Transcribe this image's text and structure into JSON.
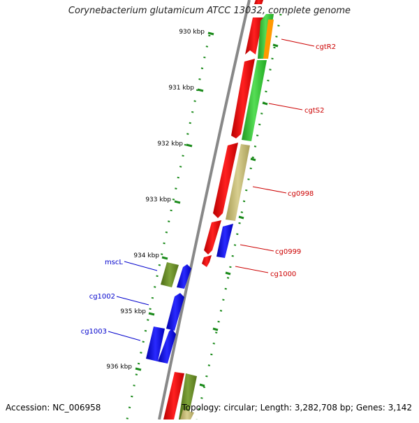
{
  "title": "Corynebacterium glutamicum ATCC 13032, complete genome",
  "footer": {
    "accession": "Accession: NC_006958",
    "topology": "Topology: circular; Length: 3,282,708 bp; Genes: 3,142"
  },
  "colors": {
    "backbone": "#888888",
    "tick": "#1a8a1a",
    "forward_label": "#cc0000",
    "reverse_label": "#0000cc",
    "red": "#ff0000",
    "green": "#33cc33",
    "orange": "#ff9900",
    "khaki": "#c8bd7a",
    "olive": "#6b8e23",
    "blue": "#0000ff"
  },
  "scale_labels": [
    "930 kbp",
    "931 kbp",
    "932 kbp",
    "933 kbp",
    "934 kbp",
    "935 kbp",
    "936 kbp"
  ],
  "gene_labels": [
    {
      "text": "cgtR2",
      "strand": "forward"
    },
    {
      "text": "cgtS2",
      "strand": "forward"
    },
    {
      "text": "cg0998",
      "strand": "forward"
    },
    {
      "text": "cg0999",
      "strand": "forward"
    },
    {
      "text": "cg1000",
      "strand": "forward"
    },
    {
      "text": "mscL",
      "strand": "reverse"
    },
    {
      "text": "cg1002",
      "strand": "reverse"
    },
    {
      "text": "cg1003",
      "strand": "reverse"
    }
  ]
}
